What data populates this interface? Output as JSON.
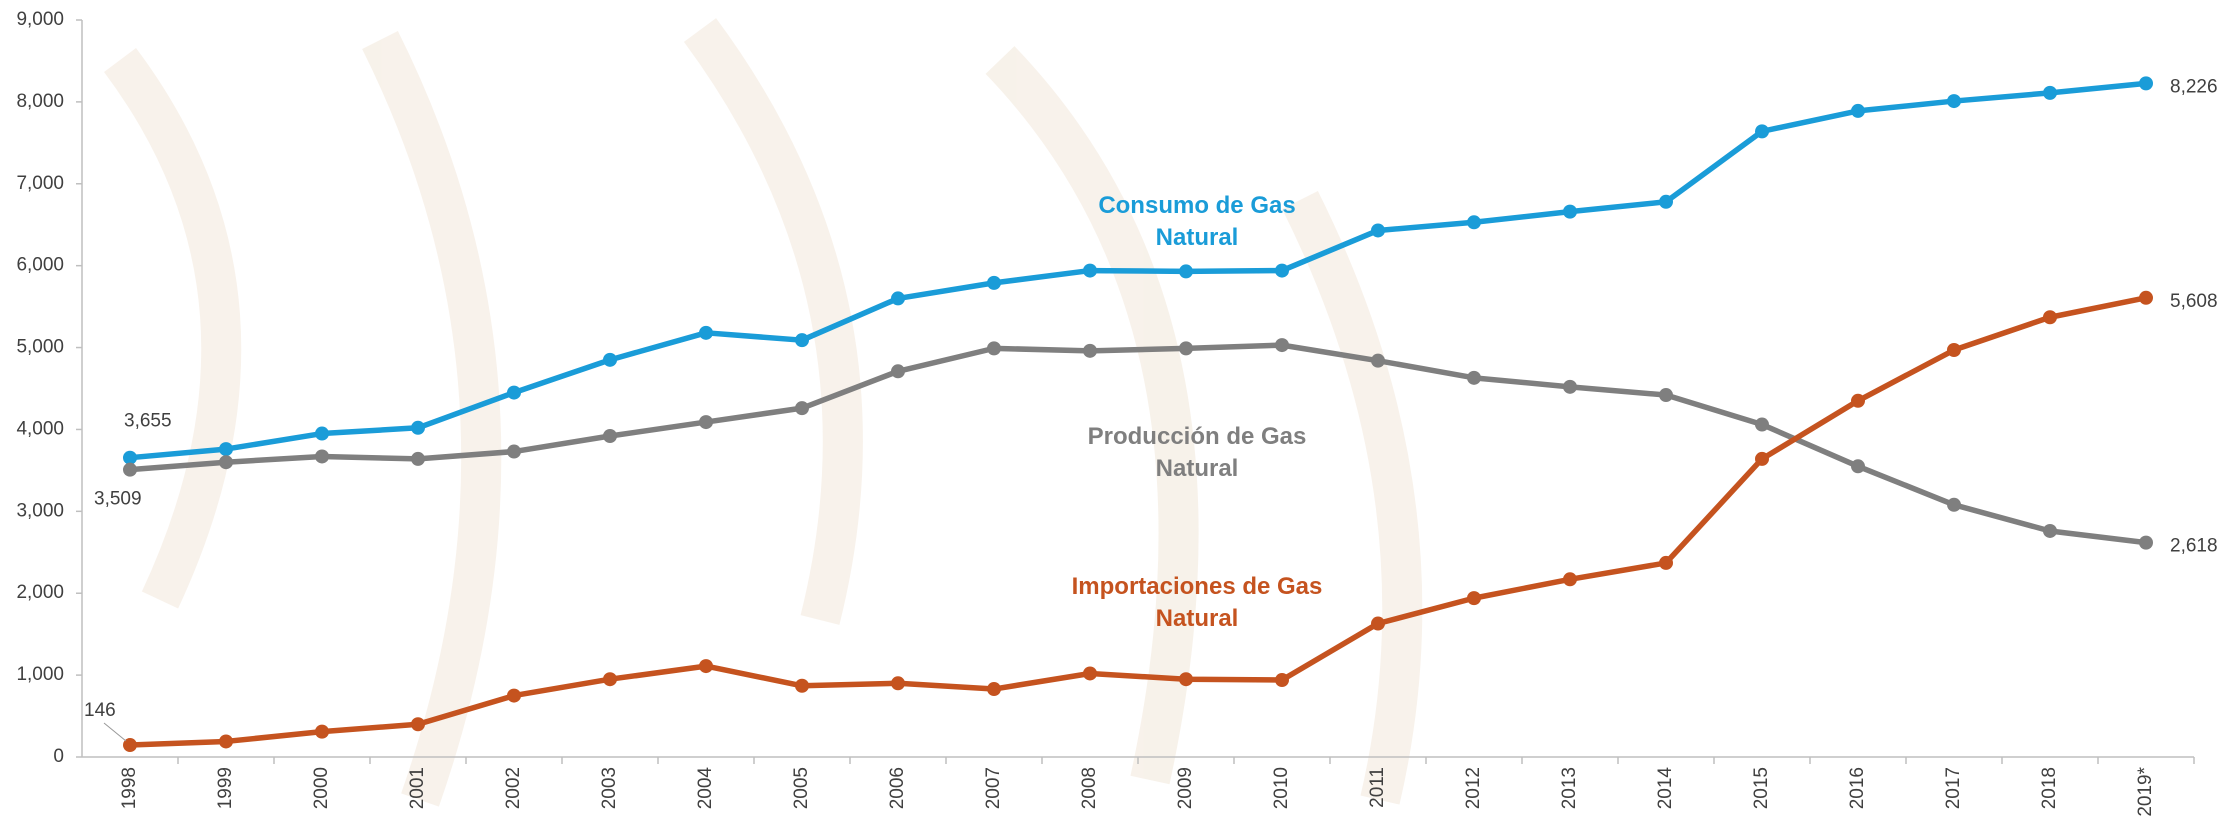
{
  "chart_data": {
    "type": "line",
    "categories": [
      "1998",
      "1999",
      "2000",
      "2001",
      "2002",
      "2003",
      "2004",
      "2005",
      "2006",
      "2007",
      "2008",
      "2009",
      "2010",
      "2011",
      "2012",
      "2013",
      "2014",
      "2015",
      "2016",
      "2017",
      "2018",
      "2019*"
    ],
    "ylim": [
      0,
      9000
    ],
    "yticks": [
      0,
      {
        "value": 1000,
        "label": "1,000"
      },
      {
        "value": 2000,
        "label": "2,000"
      },
      {
        "value": 3000,
        "label": "3,000"
      },
      {
        "value": 4000,
        "label": "4,000"
      },
      {
        "value": 5000,
        "label": "5,000"
      },
      {
        "value": 6000,
        "label": "6,000"
      },
      {
        "value": 7000,
        "label": "7,000"
      },
      {
        "value": 8000,
        "label": "8,000"
      },
      {
        "value": 9000,
        "label": "9,000"
      }
    ],
    "grid": false,
    "series": [
      {
        "name": "Consumo de Gas Natural",
        "color": "#1a9cd8",
        "values": [
          3655,
          3760,
          3950,
          4020,
          4450,
          4850,
          5180,
          5090,
          5600,
          5790,
          5940,
          5930,
          5940,
          6430,
          6530,
          6660,
          6780,
          7640,
          7890,
          8010,
          8110,
          8226
        ],
        "value_labels": [
          "3,655",
          null,
          null,
          null,
          null,
          null,
          null,
          null,
          null,
          null,
          null,
          null,
          null,
          null,
          null,
          null,
          null,
          null,
          null,
          null,
          null,
          "8,226"
        ]
      },
      {
        "name": "Producción de Gas Natural",
        "color": "#7f7f7f",
        "values": [
          3509,
          3600,
          3670,
          3640,
          3730,
          3920,
          4090,
          4260,
          4710,
          4990,
          4960,
          4990,
          5030,
          4840,
          4630,
          4520,
          4420,
          4060,
          3550,
          3080,
          2760,
          2618
        ],
        "value_labels": [
          "3,509",
          null,
          null,
          null,
          null,
          null,
          null,
          null,
          null,
          null,
          null,
          null,
          null,
          null,
          null,
          null,
          null,
          null,
          null,
          null,
          null,
          "2,618"
        ]
      },
      {
        "name": "Importaciones de Gas Natural",
        "color": "#c5531f",
        "values": [
          146,
          190,
          310,
          400,
          750,
          950,
          1110,
          870,
          900,
          830,
          1020,
          950,
          940,
          1630,
          1940,
          2170,
          2370,
          3640,
          4350,
          4970,
          5370,
          5608
        ],
        "value_labels": [
          "146",
          null,
          null,
          null,
          null,
          null,
          null,
          null,
          null,
          null,
          null,
          null,
          null,
          null,
          null,
          null,
          null,
          null,
          null,
          null,
          null,
          "5,608"
        ]
      }
    ]
  }
}
